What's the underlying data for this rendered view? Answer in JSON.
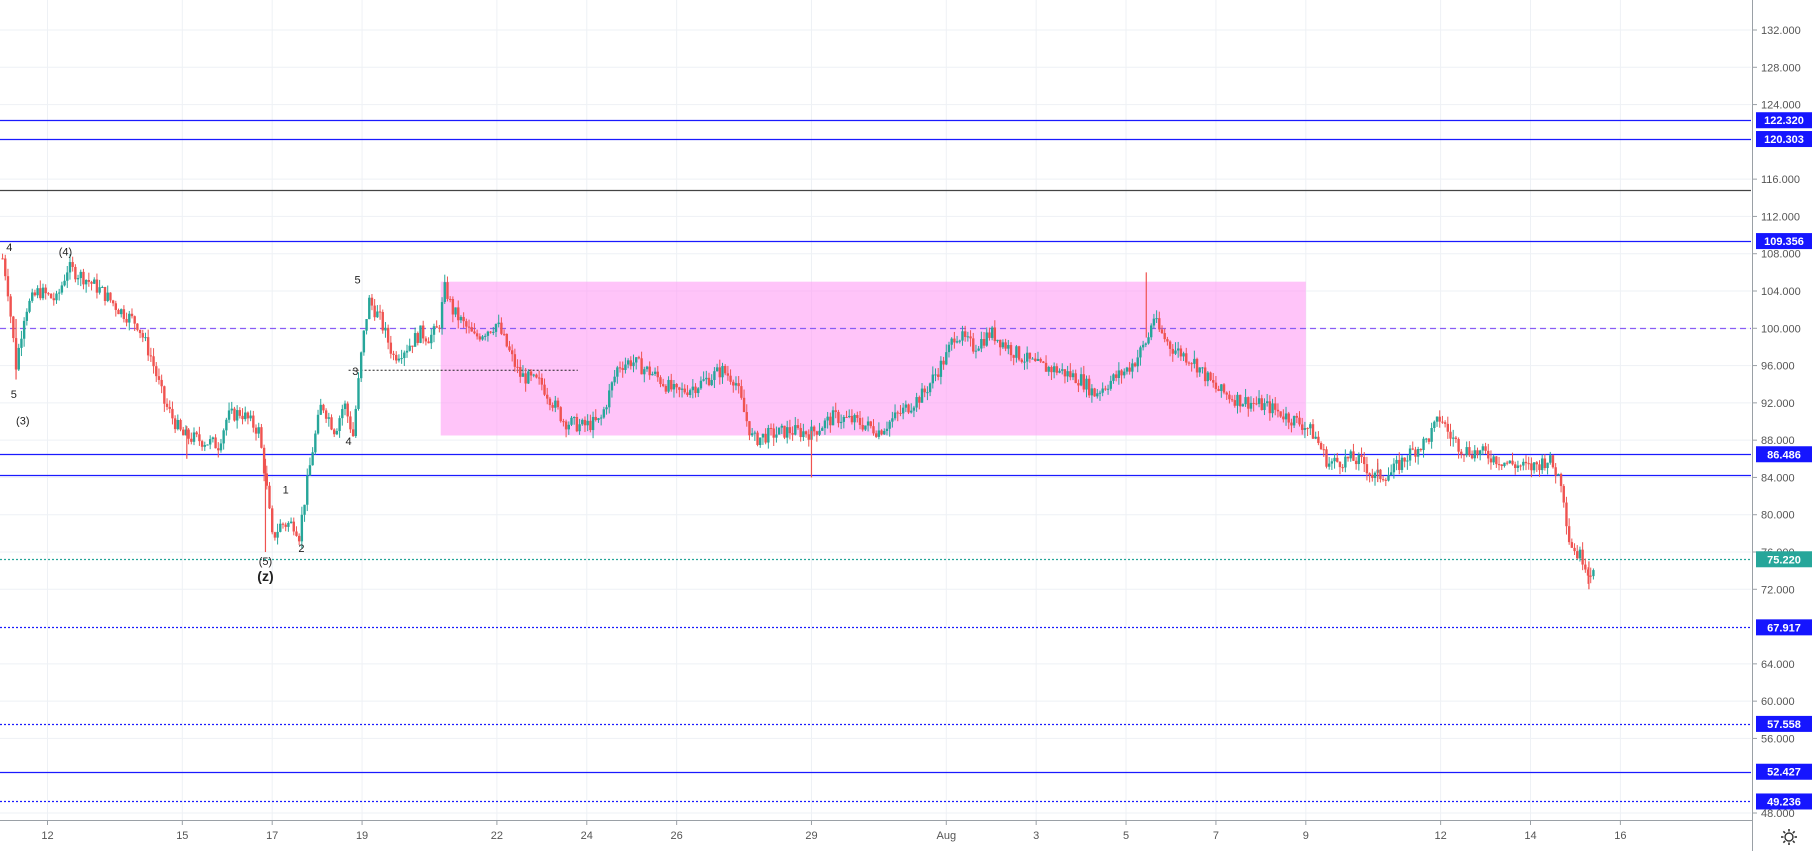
{
  "colors": {
    "background": "#ffffff",
    "grid": "#eef1f5",
    "bull": "#26a69a",
    "bear": "#ef5350",
    "level_line": "#1a1aff",
    "level_label_bg": "#1515ff",
    "current_price_bg": "#26a69a",
    "dark_line": "#444444",
    "range_box": "#ff9cf5",
    "purple_dash": "#8a5cf6",
    "axis_text": "#555555",
    "annotation_text": "#222222"
  },
  "settings": {
    "icon": "gear-icon"
  },
  "chart_data": {
    "type": "candlestick",
    "title": "",
    "y_axis": {
      "min": 46.0,
      "max": 134.0,
      "ticks": [
        "132.000",
        "128.000",
        "124.000",
        "116.000",
        "112.000",
        "108.000",
        "104.000",
        "100.000",
        "96.000",
        "92.000",
        "88.000",
        "84.000",
        "80.000",
        "76.000",
        "72.000",
        "64.000",
        "60.000",
        "56.000",
        "48.000"
      ]
    },
    "x_axis": {
      "ticks": [
        {
          "label": "12",
          "day": 12
        },
        {
          "label": "15",
          "day": 15
        },
        {
          "label": "17",
          "day": 17
        },
        {
          "label": "19",
          "day": 19
        },
        {
          "label": "22",
          "day": 22
        },
        {
          "label": "24",
          "day": 24
        },
        {
          "label": "26",
          "day": 26
        },
        {
          "label": "29",
          "day": 29
        },
        {
          "label": "Aug",
          "day": 32
        },
        {
          "label": "3",
          "day": 34
        },
        {
          "label": "5",
          "day": 36
        },
        {
          "label": "7",
          "day": 38
        },
        {
          "label": "9",
          "day": 40
        },
        {
          "label": "12",
          "day": 43
        },
        {
          "label": "14",
          "day": 45
        },
        {
          "label": "16",
          "day": 47
        }
      ]
    },
    "price_path": [
      [
        11.0,
        107.5
      ],
      [
        11.1,
        105
      ],
      [
        11.3,
        96
      ],
      [
        11.5,
        102
      ],
      [
        11.8,
        104
      ],
      [
        12.2,
        103
      ],
      [
        12.45,
        106.5
      ],
      [
        12.8,
        105.5
      ],
      [
        13.2,
        104
      ],
      [
        13.6,
        102
      ],
      [
        14.0,
        100.5
      ],
      [
        14.3,
        97
      ],
      [
        14.6,
        92
      ],
      [
        15.0,
        88.5
      ],
      [
        15.4,
        88
      ],
      [
        15.8,
        87.5
      ],
      [
        16.0,
        90.5
      ],
      [
        16.3,
        91
      ],
      [
        16.7,
        89
      ],
      [
        16.85,
        84
      ],
      [
        17.0,
        77.5
      ],
      [
        17.2,
        79
      ],
      [
        17.5,
        79
      ],
      [
        17.6,
        77.8
      ],
      [
        17.7,
        81
      ],
      [
        17.9,
        87
      ],
      [
        18.1,
        92
      ],
      [
        18.4,
        89
      ],
      [
        18.6,
        92
      ],
      [
        18.8,
        88.5
      ],
      [
        19.0,
        98
      ],
      [
        19.15,
        103
      ],
      [
        19.4,
        101
      ],
      [
        19.7,
        97
      ],
      [
        20.0,
        98
      ],
      [
        20.3,
        99.5
      ],
      [
        20.5,
        99
      ],
      [
        20.7,
        100
      ],
      [
        20.85,
        104.5
      ],
      [
        21.0,
        102
      ],
      [
        21.5,
        99
      ],
      [
        22.0,
        100.5
      ],
      [
        22.5,
        95
      ],
      [
        23.0,
        94
      ],
      [
        23.5,
        90
      ],
      [
        23.9,
        89.5
      ],
      [
        24.3,
        90
      ],
      [
        24.7,
        96
      ],
      [
        25.0,
        96.5
      ],
      [
        25.5,
        95
      ],
      [
        26.0,
        93
      ],
      [
        26.5,
        94
      ],
      [
        27.0,
        95.5
      ],
      [
        27.3,
        94.5
      ],
      [
        27.5,
        91
      ],
      [
        27.7,
        88
      ],
      [
        28.0,
        88.5
      ],
      [
        28.5,
        89
      ],
      [
        29.0,
        88.8
      ],
      [
        29.5,
        90.5
      ],
      [
        30.0,
        90
      ],
      [
        30.5,
        89
      ],
      [
        31.0,
        91
      ],
      [
        31.5,
        93
      ],
      [
        32.0,
        97
      ],
      [
        32.2,
        99.5
      ],
      [
        32.6,
        98
      ],
      [
        33.0,
        99.5
      ],
      [
        33.5,
        97.5
      ],
      [
        34.0,
        96
      ],
      [
        34.5,
        95.5
      ],
      [
        35.0,
        94.5
      ],
      [
        35.3,
        93
      ],
      [
        35.7,
        94.5
      ],
      [
        36.0,
        95.5
      ],
      [
        36.2,
        96.5
      ],
      [
        36.5,
        99
      ],
      [
        36.6,
        101.5
      ],
      [
        36.7,
        100
      ],
      [
        37.0,
        98
      ],
      [
        37.5,
        96.5
      ],
      [
        38.0,
        93.5
      ],
      [
        38.4,
        92.5
      ],
      [
        38.8,
        92
      ],
      [
        39.2,
        91.5
      ],
      [
        39.6,
        90.5
      ],
      [
        40.0,
        89.5
      ],
      [
        40.2,
        88.5
      ],
      [
        40.5,
        85.5
      ],
      [
        41.0,
        86
      ],
      [
        41.3,
        85.5
      ],
      [
        41.5,
        84
      ],
      [
        41.9,
        84.5
      ],
      [
        42.3,
        86.5
      ],
      [
        42.7,
        88
      ],
      [
        43.0,
        90.5
      ],
      [
        43.2,
        88.5
      ],
      [
        43.5,
        87
      ],
      [
        44.0,
        86.5
      ],
      [
        44.5,
        85.5
      ],
      [
        45.0,
        85
      ],
      [
        45.4,
        86
      ],
      [
        45.7,
        83.5
      ],
      [
        45.85,
        77.5
      ],
      [
        46.0,
        76
      ],
      [
        46.2,
        75.2
      ],
      [
        46.3,
        73.5
      ],
      [
        46.45,
        75.22
      ]
    ],
    "spikes": [
      {
        "day": 11.3,
        "high": 101,
        "low": 94.5
      },
      {
        "day": 15.1,
        "high": 89.5,
        "low": 86
      },
      {
        "day": 16.85,
        "high": 86,
        "low": 76
      },
      {
        "day": 29.0,
        "high": 89,
        "low": 84
      },
      {
        "day": 36.45,
        "high": 106,
        "low": 99
      },
      {
        "day": 46.3,
        "high": 75,
        "low": 72
      },
      {
        "day": 41.6,
        "high": 86,
        "low": 83.5
      }
    ],
    "horizontal_levels": [
      {
        "price": 122.32,
        "label": "122.320",
        "style": "solid",
        "label_shown": true
      },
      {
        "price": 120.303,
        "label": "120.303",
        "style": "solid",
        "label_shown": true
      },
      {
        "price": 114.8,
        "label": "",
        "style": "solid-dark",
        "label_shown": false
      },
      {
        "price": 109.356,
        "label": "109.356",
        "style": "solid",
        "label_shown": true
      },
      {
        "price": 100.0,
        "label": "",
        "style": "dashed-purple",
        "label_shown": false
      },
      {
        "price": 86.486,
        "label": "86.486",
        "style": "solid",
        "label_shown": true
      },
      {
        "price": 84.3,
        "label": "",
        "style": "solid",
        "label_shown": false
      },
      {
        "price": 75.22,
        "label": "75.220",
        "style": "dotted-teal",
        "label_shown": true,
        "current": true
      },
      {
        "price": 67.917,
        "label": "67.917",
        "style": "dotted",
        "label_shown": true
      },
      {
        "price": 57.558,
        "label": "57.558",
        "style": "dotted",
        "label_shown": true
      },
      {
        "price": 52.427,
        "label": "52.427",
        "style": "solid",
        "label_shown": true
      },
      {
        "price": 49.236,
        "label": "49.236",
        "style": "dotted",
        "label_shown": true
      }
    ],
    "range_box": {
      "day_start": 20.75,
      "day_end": 40.0,
      "price_top": 105.0,
      "price_bottom": 88.5
    },
    "dotted_segment": {
      "day_start": 18.7,
      "day_end": 23.8,
      "price": 95.5
    },
    "annotations": [
      {
        "text": "4",
        "day": 11.15,
        "price": 108.3,
        "bold": false
      },
      {
        "text": "(4)",
        "day": 12.4,
        "price": 107.8,
        "bold": false
      },
      {
        "text": "5",
        "day": 11.25,
        "price": 92.5,
        "bold": false
      },
      {
        "text": "(3)",
        "day": 11.45,
        "price": 89.7,
        "bold": false
      },
      {
        "text": "5",
        "day": 18.9,
        "price": 104.8,
        "bold": false
      },
      {
        "text": "3",
        "day": 18.85,
        "price": 95.0,
        "bold": false
      },
      {
        "text": "4",
        "day": 18.7,
        "price": 87.5,
        "bold": false
      },
      {
        "text": "1",
        "day": 17.3,
        "price": 82.3,
        "bold": false
      },
      {
        "text": "2",
        "day": 17.65,
        "price": 76.0,
        "bold": false
      },
      {
        "text": "(5)",
        "day": 16.85,
        "price": 74.6,
        "bold": false
      },
      {
        "text": "(z)",
        "day": 16.85,
        "price": 72.9,
        "bold": true
      }
    ]
  }
}
